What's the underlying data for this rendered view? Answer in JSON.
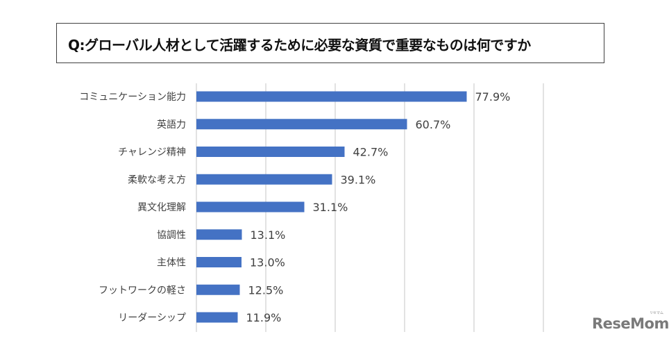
{
  "title": "Q:グローバル人材として活躍するために必要な資質で重要なものは何ですか",
  "logo": {
    "text": "ReseMom",
    "subtext": "リセマム"
  },
  "chart_data": {
    "type": "bar",
    "orientation": "horizontal",
    "title": "Q:グローバル人材として活躍するために必要な資質で重要なものは何ですか",
    "categories": [
      "コミュニケーション能力",
      "英語力",
      "チャレンジ精神",
      "柔軟な考え方",
      "異文化理解",
      "協調性",
      "主体性",
      "フットワークの軽さ",
      "リーダーシップ"
    ],
    "values": [
      77.9,
      60.7,
      42.7,
      39.1,
      31.1,
      13.1,
      13.0,
      12.5,
      11.9
    ],
    "value_labels": [
      "77.9%",
      "60.7%",
      "42.7%",
      "39.1%",
      "31.1%",
      "13.1%",
      "13.0%",
      "12.5%",
      "11.9%"
    ],
    "xlabel": "",
    "ylabel": "",
    "xlim": [
      0,
      100
    ],
    "gridlines": [
      0,
      20,
      40,
      60,
      80,
      100
    ],
    "grid": true,
    "legend": "none",
    "bar_color": "#4472C4",
    "grid_color": "#D9D9D9"
  }
}
